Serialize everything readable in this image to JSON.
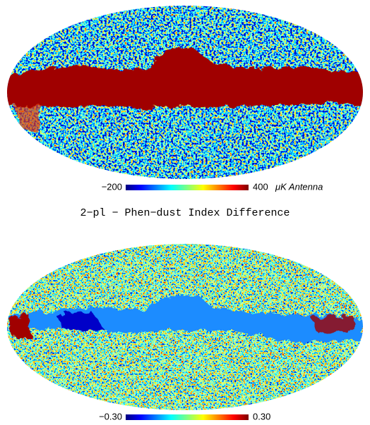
{
  "panels": [
    {
      "colorbar": {
        "min": "−200",
        "max": "400",
        "unit": "μK Antenna"
      }
    },
    {
      "title": "2−pl − Phen−dust Index Difference",
      "colorbar": {
        "min": "−0.30",
        "max": "0.30"
      }
    }
  ]
}
